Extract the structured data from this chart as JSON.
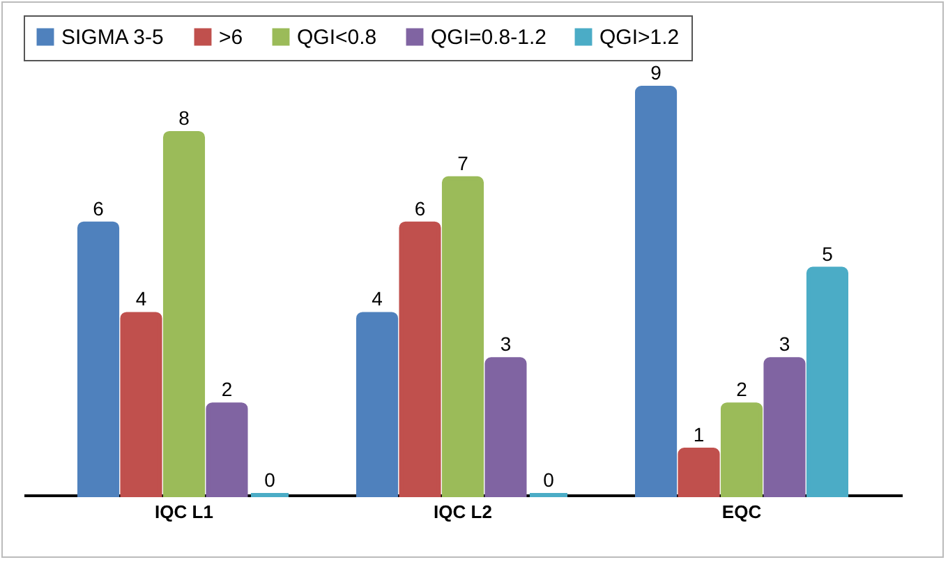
{
  "chart_data": {
    "type": "bar",
    "categories": [
      "IQC L1",
      "IQC L2",
      "EQC"
    ],
    "series": [
      {
        "name": "SIGMA 3-5",
        "color": "#4f81bd",
        "values": [
          6,
          4,
          9
        ]
      },
      {
        "name": ">6",
        "color": "#c0504d",
        "values": [
          4,
          6,
          1
        ]
      },
      {
        "name": "QGI<0.8",
        "color": "#9bbb59",
        "values": [
          8,
          7,
          2
        ]
      },
      {
        "name": "QGI=0.8-1.2",
        "color": "#8064a2",
        "values": [
          2,
          3,
          3
        ]
      },
      {
        "name": "QGI>1.2",
        "color": "#4bacc6",
        "values": [
          0,
          0,
          5
        ]
      }
    ],
    "data_labels": true,
    "legend": "top",
    "grid": false
  }
}
